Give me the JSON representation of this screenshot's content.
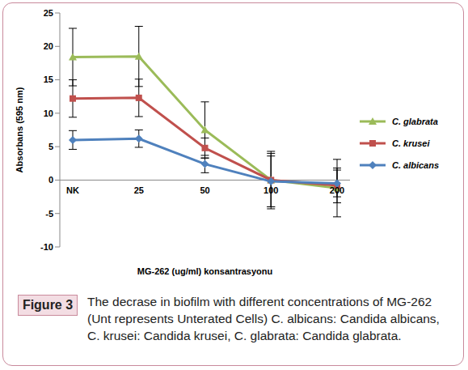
{
  "chart_data": {
    "type": "line",
    "y_label": "Absorbans (595 nm)",
    "x_label": "MG-262 (ug/ml) konsantrasyonu",
    "categories": [
      "NK",
      "25",
      "50",
      "100",
      "200"
    ],
    "ylim": [
      -10,
      25
    ],
    "yticks": [
      -10,
      -5,
      0,
      5,
      10,
      15,
      20,
      25
    ],
    "grid": false,
    "legend": "right",
    "series": [
      {
        "name": "C. glabrata",
        "color": "#9BBB59",
        "marker": "triangle",
        "values": [
          18.4,
          18.5,
          7.5,
          0.0,
          -1.2
        ],
        "errors": [
          4.3,
          4.5,
          4.2,
          4.3,
          4.3
        ]
      },
      {
        "name": "C. krusei",
        "color": "#C0504D",
        "marker": "square",
        "values": [
          12.2,
          12.3,
          4.8,
          0.0,
          -0.8
        ],
        "errors": [
          2.8,
          2.8,
          1.5,
          4.0,
          2.6
        ]
      },
      {
        "name": "C. albicans",
        "color": "#4F81BD",
        "marker": "diamond",
        "values": [
          6.0,
          6.2,
          2.4,
          -0.2,
          -0.5
        ],
        "errors": [
          1.4,
          1.3,
          1.3,
          3.8,
          2.0
        ]
      }
    ]
  },
  "caption": {
    "label": "Figure 3",
    "text": "The decrase in biofilm with different concentrations of MG-262 (Unt represents Unterated Cells) C. albicans: Candida albicans, C. krusei: Candida krusei, C. glabrata: Candida glabrata."
  }
}
